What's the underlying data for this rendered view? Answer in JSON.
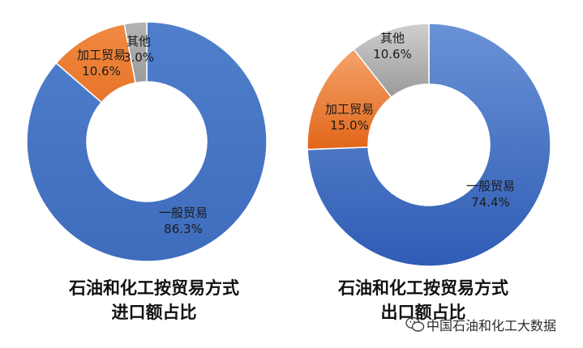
{
  "chart_data": [
    {
      "type": "pie",
      "donut": true,
      "title": [
        "石油和化工按贸易方式",
        "进口额占比"
      ],
      "slices": [
        {
          "label": "一般贸易",
          "value": 86.3,
          "value_label": "86.3%",
          "color": "#4472C4"
        },
        {
          "label": "加工贸易",
          "value": 10.6,
          "value_label": "10.6%",
          "color": "#ED7D31"
        },
        {
          "label": "其他",
          "value": 3.0,
          "value_label": "3.0%",
          "color": "#A5A5A5"
        }
      ]
    },
    {
      "type": "pie",
      "donut": true,
      "title": [
        "石油和化工按贸易方式",
        "出口额占比"
      ],
      "slices": [
        {
          "label": "一般贸易",
          "value": 74.4,
          "value_label": "74.4%",
          "color": "#4472C4"
        },
        {
          "label": "加工贸易",
          "value": 15.0,
          "value_label": "15.0%",
          "color": "#ED7D31"
        },
        {
          "label": "其他",
          "value": 10.6,
          "value_label": "10.6%",
          "color": "#A5A5A5"
        }
      ]
    }
  ],
  "watermark": {
    "text": "中国石油和化工大数据",
    "icon": "wechat-icon"
  }
}
